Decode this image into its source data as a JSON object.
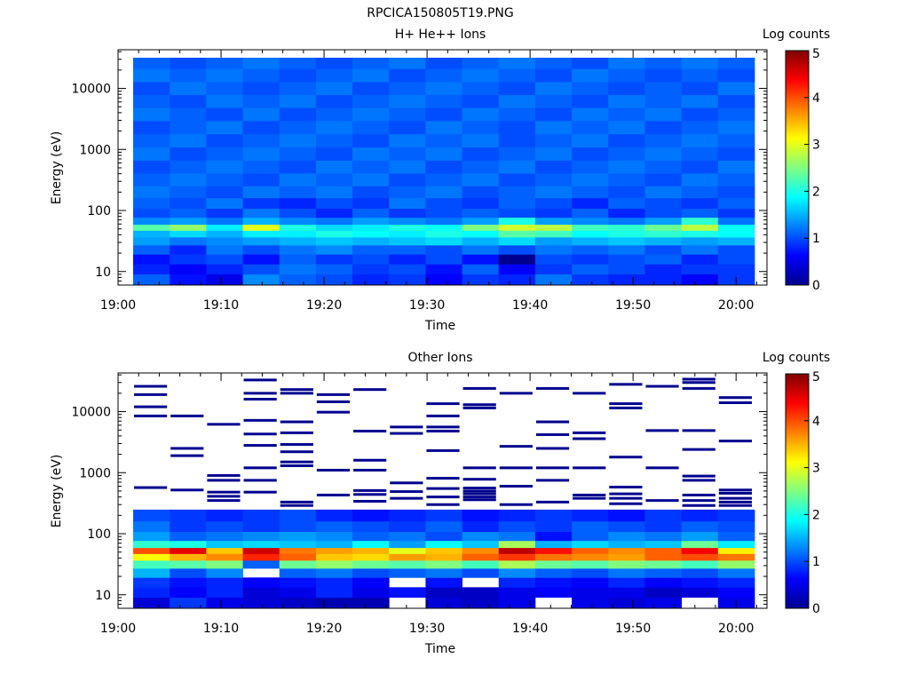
{
  "figure": {
    "title": "RPCICA150805T19.PNG"
  },
  "palette": [
    "#00008f",
    "#0000ff",
    "#0080ff",
    "#00ffff",
    "#80ff80",
    "#ffff00",
    "#ff8000",
    "#ff0000",
    "#800000"
  ],
  "chart_data": [
    {
      "type": "heatmap",
      "title": "H+ He++ Ions",
      "xlabel": "Time",
      "ylabel": "Energy (eV)",
      "colorbar_label": "Log counts",
      "x_ticks": [
        "19:00",
        "19:10",
        "19:20",
        "19:30",
        "19:40",
        "19:50",
        "20:00"
      ],
      "y_ticks": [
        "10",
        "100",
        "1000",
        "10000"
      ],
      "colorbar_ticks": [
        "0",
        "1",
        "2",
        "3",
        "4",
        "5"
      ],
      "xlim": [
        "19:00",
        "20:03"
      ],
      "ylim": [
        6,
        43000
      ],
      "y_scale": "log",
      "colorbar_range": [
        0,
        5
      ],
      "time_bins": [
        "19:01",
        "19:05",
        "19:09",
        "19:12",
        "19:16",
        "19:20",
        "19:23",
        "19:27",
        "19:31",
        "19:34",
        "19:38",
        "19:42",
        "19:45",
        "19:49",
        "19:53",
        "19:56",
        "20:00"
      ],
      "energy_bins": [
        {
          "energy": 7.5,
          "values": [
            1.1,
            0.7,
            0.5,
            1.3,
            1.1,
            1.0,
            0.8,
            0.9,
            0.6,
            0.9,
            0.8,
            1.2,
            0.9,
            0.8,
            0.8,
            0.6,
            0.9
          ]
        },
        {
          "energy": 11,
          "values": [
            0.8,
            0.6,
            0.8,
            1.0,
            1.2,
            1.1,
            0.9,
            1.0,
            0.7,
            1.1,
            0.6,
            0.9,
            1.1,
            1.0,
            0.8,
            0.9,
            0.9
          ]
        },
        {
          "energy": 16,
          "values": [
            0.7,
            0.9,
            1.0,
            0.7,
            1.1,
            0.9,
            1.0,
            0.8,
            1.0,
            0.7,
            0.0,
            1.0,
            0.9,
            1.0,
            1.1,
            0.8,
            1.0
          ]
        },
        {
          "energy": 23,
          "values": [
            1.1,
            0.8,
            1.2,
            1.0,
            1.2,
            1.3,
            1.1,
            1.1,
            1.0,
            1.2,
            1.0,
            1.2,
            1.1,
            1.2,
            1.0,
            1.2,
            1.0
          ]
        },
        {
          "energy": 32,
          "values": [
            1.4,
            1.2,
            1.3,
            1.4,
            1.5,
            1.6,
            1.5,
            1.6,
            1.7,
            1.5,
            1.7,
            1.4,
            1.5,
            1.6,
            1.5,
            1.4,
            1.5
          ]
        },
        {
          "energy": 42,
          "values": [
            1.5,
            1.7,
            1.5,
            1.8,
            1.8,
            2.0,
            1.9,
            1.8,
            2.0,
            1.9,
            2.3,
            2.2,
            1.9,
            2.0,
            2.1,
            2.0,
            1.9
          ]
        },
        {
          "energy": 53,
          "values": [
            2.3,
            2.6,
            1.8,
            3.0,
            2.0,
            1.7,
            1.8,
            2.0,
            1.9,
            2.5,
            2.9,
            2.8,
            2.2,
            2.1,
            2.4,
            2.8,
            1.9
          ]
        },
        {
          "energy": 66,
          "values": [
            1.3,
            1.4,
            1.2,
            1.5,
            1.3,
            1.2,
            1.4,
            1.3,
            1.2,
            1.4,
            2.0,
            1.4,
            1.3,
            1.2,
            1.4,
            2.1,
            1.2
          ]
        },
        {
          "energy": 90,
          "values": [
            1.0,
            1.1,
            0.9,
            1.2,
            1.0,
            0.8,
            1.1,
            0.9,
            1.0,
            1.1,
            1.0,
            0.9,
            1.1,
            0.8,
            1.0,
            1.1,
            0.9
          ]
        },
        {
          "energy": 130,
          "values": [
            1.1,
            1.0,
            1.2,
            0.9,
            0.8,
            1.0,
            0.9,
            1.2,
            1.0,
            0.9,
            1.1,
            1.0,
            0.8,
            1.1,
            1.0,
            0.9,
            1.1
          ]
        },
        {
          "energy": 200,
          "values": [
            1.2,
            1.1,
            1.0,
            1.2,
            1.1,
            1.2,
            1.0,
            1.1,
            1.2,
            1.0,
            1.1,
            1.2,
            1.1,
            1.0,
            1.2,
            1.1,
            1.0
          ]
        },
        {
          "energy": 320,
          "values": [
            1.1,
            1.2,
            1.1,
            1.0,
            1.2,
            1.1,
            1.2,
            1.0,
            1.1,
            1.2,
            1.0,
            1.1,
            1.2,
            1.1,
            1.0,
            1.2,
            1.1
          ]
        },
        {
          "energy": 520,
          "values": [
            1.0,
            1.1,
            1.2,
            1.1,
            1.0,
            1.2,
            1.1,
            1.2,
            1.0,
            1.1,
            1.2,
            1.0,
            1.1,
            1.2,
            1.1,
            1.0,
            1.2
          ]
        },
        {
          "energy": 850,
          "values": [
            1.2,
            1.0,
            1.1,
            1.2,
            1.1,
            1.0,
            1.2,
            1.1,
            1.2,
            1.0,
            1.1,
            1.2,
            1.0,
            1.1,
            1.2,
            1.1,
            1.0
          ]
        },
        {
          "energy": 1400,
          "values": [
            1.1,
            1.2,
            1.0,
            1.1,
            1.2,
            1.1,
            1.0,
            1.2,
            1.1,
            1.2,
            1.0,
            1.1,
            1.2,
            1.0,
            1.1,
            1.2,
            1.1
          ]
        },
        {
          "energy": 2300,
          "values": [
            1.0,
            1.1,
            1.2,
            1.0,
            1.1,
            1.2,
            1.1,
            1.0,
            1.2,
            1.1,
            1.0,
            1.2,
            1.1,
            1.2,
            1.0,
            1.1,
            1.2
          ]
        },
        {
          "energy": 3800,
          "values": [
            1.2,
            1.1,
            1.0,
            1.2,
            1.0,
            1.1,
            1.2,
            1.1,
            1.0,
            1.2,
            1.1,
            1.0,
            1.2,
            1.1,
            1.2,
            1.0,
            1.1
          ]
        },
        {
          "energy": 6200,
          "values": [
            1.1,
            1.0,
            1.2,
            1.1,
            1.2,
            1.0,
            1.1,
            1.2,
            1.1,
            1.0,
            1.2,
            1.1,
            1.0,
            1.2,
            1.1,
            1.2,
            1.0
          ]
        },
        {
          "energy": 10000,
          "values": [
            1.0,
            1.2,
            1.1,
            1.0,
            1.1,
            1.2,
            1.0,
            1.1,
            1.2,
            1.1,
            1.0,
            1.2,
            1.1,
            1.0,
            1.1,
            1.0,
            1.2
          ]
        },
        {
          "energy": 16500,
          "values": [
            1.2,
            1.1,
            1.2,
            1.1,
            1.0,
            1.1,
            1.2,
            1.0,
            1.1,
            1.2,
            1.1,
            1.0,
            1.2,
            1.1,
            1.0,
            1.1,
            1.0
          ]
        },
        {
          "energy": 27000,
          "values": [
            1.1,
            1.0,
            1.1,
            1.2,
            1.1,
            1.0,
            1.1,
            1.2,
            1.0,
            1.1,
            1.2,
            1.1,
            1.0,
            1.2,
            1.1,
            1.2,
            1.1
          ]
        }
      ]
    },
    {
      "type": "heatmap",
      "title": "Other Ions",
      "xlabel": "Time",
      "ylabel": "Energy (eV)",
      "colorbar_label": "Log counts",
      "x_ticks": [
        "19:00",
        "19:10",
        "19:20",
        "19:30",
        "19:40",
        "19:50",
        "20:00"
      ],
      "y_ticks": [
        "10",
        "100",
        "1000",
        "10000"
      ],
      "colorbar_ticks": [
        "0",
        "1",
        "2",
        "3",
        "4",
        "5"
      ],
      "xlim": [
        "19:00",
        "20:03"
      ],
      "ylim": [
        6,
        43000
      ],
      "y_scale": "log",
      "colorbar_range": [
        0,
        5
      ],
      "time_bins": [
        "19:01",
        "19:05",
        "19:09",
        "19:12",
        "19:16",
        "19:20",
        "19:23",
        "19:27",
        "19:31",
        "19:34",
        "19:38",
        "19:42",
        "19:45",
        "19:49",
        "19:53",
        "19:56",
        "20:00"
      ],
      "energy_bins": [
        {
          "energy": 7.5,
          "values": [
            0.4,
            0.9,
            0.5,
            0.4,
            0.3,
            0.2,
            0.2,
            null,
            0.4,
            0.3,
            0.5,
            null,
            0.5,
            0.4,
            0.5,
            null,
            0.5
          ]
        },
        {
          "energy": 11,
          "values": [
            0.8,
            0.6,
            0.8,
            0.4,
            0.5,
            0.8,
            0.5,
            0.7,
            0.3,
            0.3,
            0.5,
            0.6,
            0.5,
            0.5,
            0.3,
            0.4,
            0.6
          ]
        },
        {
          "energy": 16,
          "values": [
            0.9,
            0.7,
            0.8,
            0.6,
            0.7,
            0.8,
            0.6,
            null,
            0.7,
            null,
            0.8,
            0.7,
            0.6,
            0.8,
            0.6,
            0.7,
            0.8
          ]
        },
        {
          "energy": 23,
          "values": [
            1.5,
            1.0,
            1.3,
            null,
            1.1,
            1.2,
            1.0,
            1.1,
            1.2,
            1.0,
            1.3,
            1.1,
            1.0,
            1.2,
            1.1,
            1.0,
            1.2
          ]
        },
        {
          "energy": 32,
          "values": [
            2.2,
            2.3,
            2.5,
            1.1,
            2.4,
            2.6,
            2.4,
            2.3,
            2.5,
            2.2,
            2.7,
            2.4,
            2.3,
            2.5,
            2.4,
            2.2,
            2.6
          ]
        },
        {
          "energy": 42,
          "values": [
            3.1,
            3.5,
            3.7,
            4.2,
            3.9,
            3.4,
            3.3,
            3.6,
            3.5,
            3.9,
            4.1,
            3.8,
            3.7,
            3.6,
            3.9,
            4.0,
            3.8
          ]
        },
        {
          "energy": 53,
          "values": [
            4.0,
            4.5,
            3.4,
            4.6,
            3.8,
            3.6,
            3.5,
            3.0,
            3.4,
            3.7,
            4.7,
            4.3,
            3.9,
            3.7,
            3.9,
            4.4,
            3.2
          ]
        },
        {
          "energy": 66,
          "values": [
            2.1,
            2.0,
            1.6,
            1.7,
            1.6,
            1.5,
            1.9,
            1.4,
            1.9,
            1.6,
            2.7,
            1.5,
            1.7,
            1.5,
            1.6,
            2.4,
            1.8
          ]
        },
        {
          "energy": 90,
          "values": [
            1.4,
            1.1,
            1.2,
            1.3,
            1.4,
            1.3,
            1.1,
            1.2,
            1.0,
            1.3,
            1.2,
            0.7,
            1.1,
            1.3,
            1.2,
            1.4,
            1.1
          ]
        },
        {
          "energy": 130,
          "values": [
            1.2,
            0.9,
            1.0,
            0.9,
            1.0,
            1.1,
            1.0,
            0.9,
            1.1,
            0.8,
            1.0,
            0.9,
            1.1,
            1.0,
            0.9,
            1.1,
            1.0
          ]
        },
        {
          "energy": 200,
          "values": [
            1.0,
            0.9,
            0.8,
            0.9,
            1.0,
            0.8,
            0.7,
            0.8,
            0.9,
            0.7,
            0.8,
            0.9,
            0.8,
            0.7,
            0.9,
            0.8,
            0.9
          ]
        }
      ],
      "sparse_bins": [
        {
          "time": "19:01",
          "energies": [
            26000,
            19000,
            12000,
            8500,
            570
          ]
        },
        {
          "time": "19:05",
          "energies": [
            8500,
            2500,
            1900,
            520
          ]
        },
        {
          "time": "19:09",
          "energies": [
            6200,
            900,
            750,
            480,
            410,
            350
          ]
        },
        {
          "time": "19:12",
          "energies": [
            33000,
            20000,
            16000,
            7200,
            4300,
            2800,
            1200,
            750,
            480
          ]
        },
        {
          "time": "19:16",
          "energies": [
            23000,
            20000,
            6800,
            4500,
            2900,
            2200,
            1500,
            1300,
            330,
            290
          ]
        },
        {
          "time": "19:20",
          "energies": [
            19000,
            14500,
            9800,
            1100,
            430
          ]
        },
        {
          "time": "19:23",
          "energies": [
            23000,
            4800,
            1600,
            1100,
            510,
            440,
            340
          ]
        },
        {
          "time": "19:27",
          "energies": [
            5600,
            4400,
            680,
            490,
            380
          ]
        },
        {
          "time": "19:31",
          "energies": [
            13500,
            8500,
            5600,
            4800,
            2300,
            810,
            550,
            400,
            300
          ]
        },
        {
          "time": "19:34",
          "energies": [
            24000,
            13000,
            11500,
            1200,
            780,
            560,
            500,
            450,
            400,
            360
          ]
        },
        {
          "time": "19:38",
          "energies": [
            20000,
            2700,
            1200,
            600,
            300
          ]
        },
        {
          "time": "19:42",
          "energies": [
            24000,
            6800,
            4200,
            2500,
            1200,
            750,
            330
          ]
        },
        {
          "time": "19:45",
          "energies": [
            20000,
            4500,
            3600,
            1200,
            430,
            380
          ]
        },
        {
          "time": "19:49",
          "energies": [
            28000,
            13500,
            11500,
            1800,
            580,
            450,
            380,
            310
          ]
        },
        {
          "time": "19:53",
          "energies": [
            26000,
            4900,
            1200,
            350
          ]
        },
        {
          "time": "19:56",
          "energies": [
            34000,
            30000,
            24000,
            4900,
            2400,
            880,
            750,
            430,
            350,
            290
          ]
        },
        {
          "time": "20:00",
          "energies": [
            17000,
            14000,
            3300,
            520,
            460,
            380,
            330,
            290
          ]
        }
      ]
    }
  ]
}
